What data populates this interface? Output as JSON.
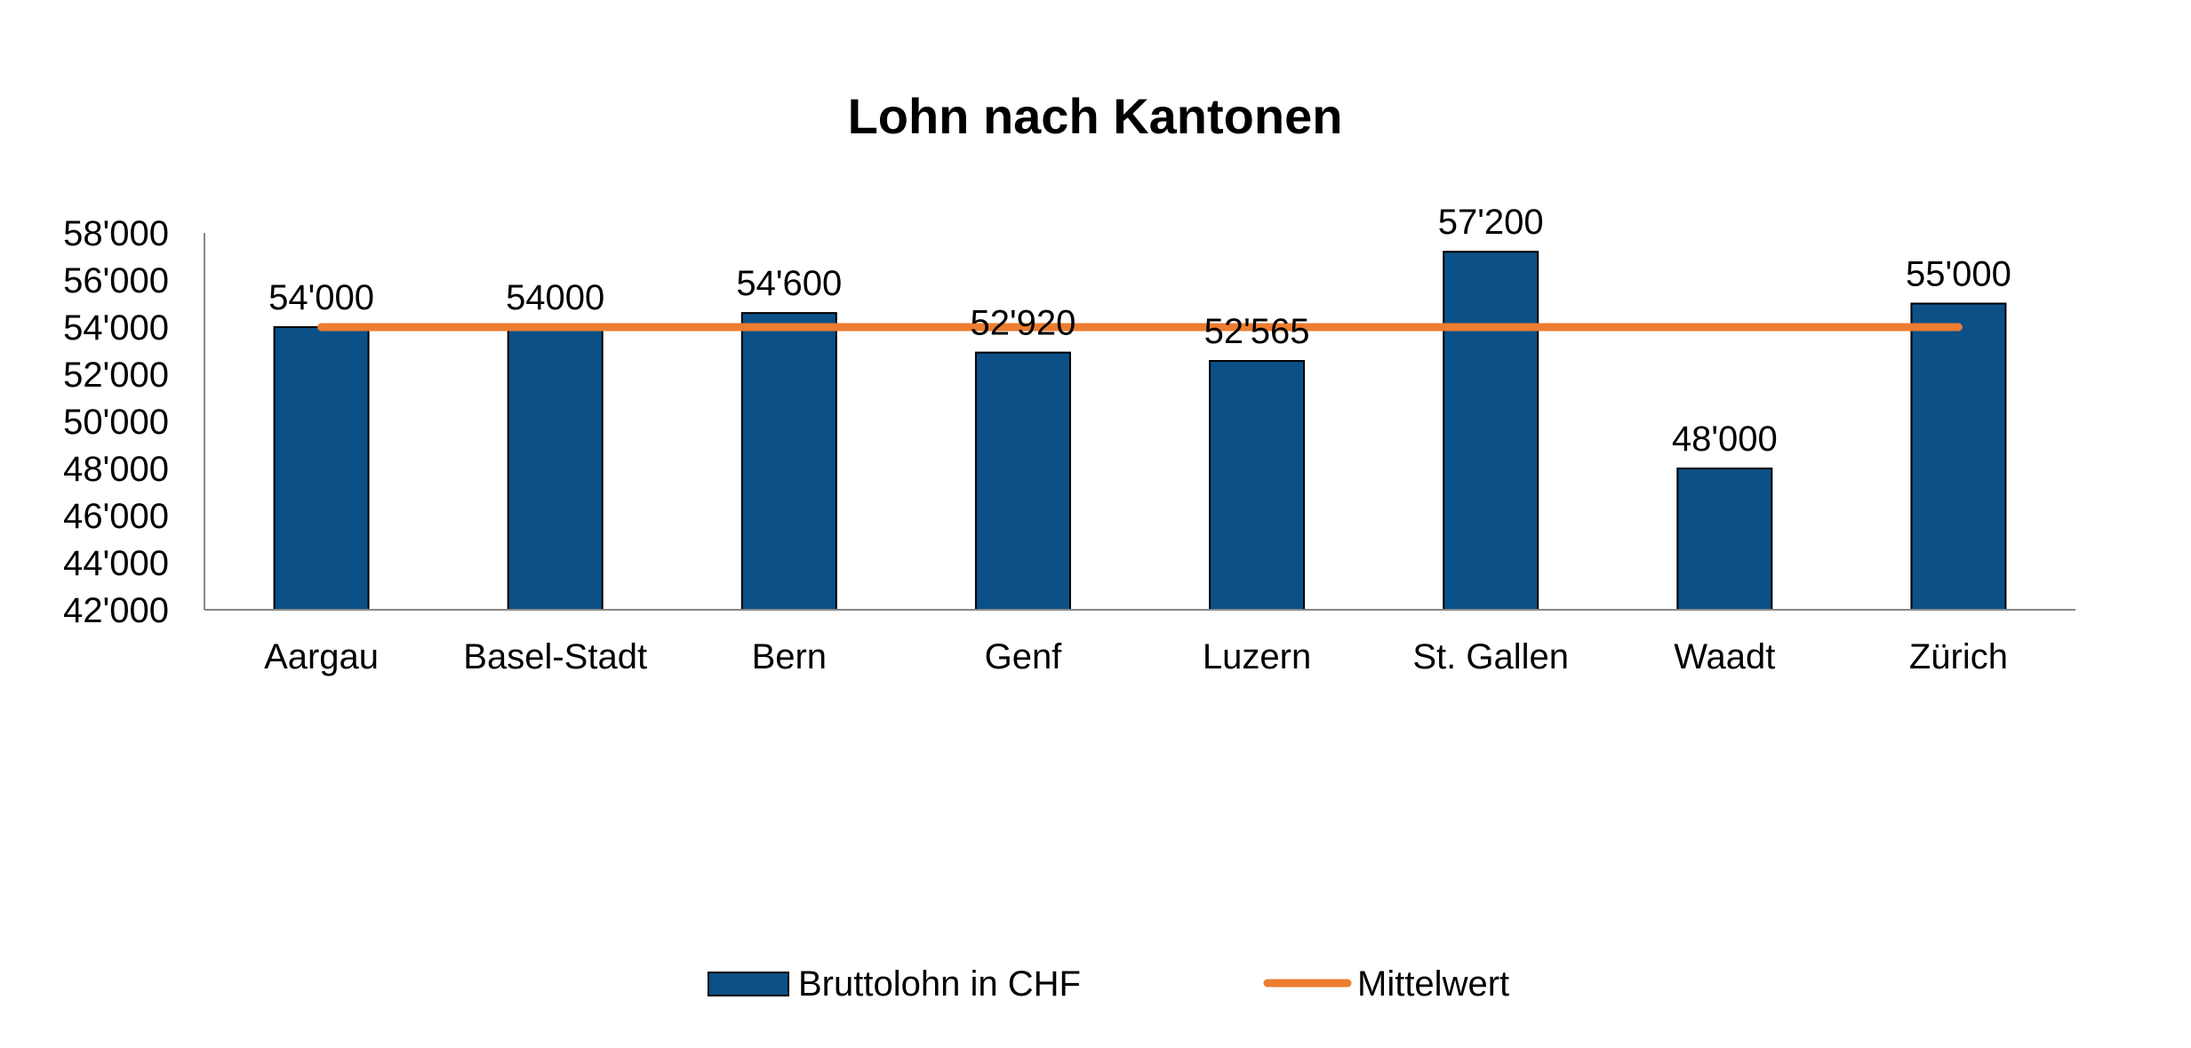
{
  "chart_data": {
    "type": "bar",
    "title": "Lohn nach Kantonen",
    "categories": [
      "Aargau",
      "Basel-Stadt",
      "Bern",
      "Genf",
      "Luzern",
      "St. Gallen",
      "Waadt",
      "Zürich"
    ],
    "series": [
      {
        "name": "Bruttolohn in CHF",
        "type": "bar",
        "color": "#0b5087",
        "values": [
          54000,
          54000,
          54600,
          52920,
          52565,
          57200,
          48000,
          55000
        ],
        "labels": [
          "54'000",
          "54000",
          "54'600",
          "52'920",
          "52'565",
          "57'200",
          "48'000",
          "55'000"
        ]
      },
      {
        "name": "Mittelwert",
        "type": "line",
        "color": "#ed7d31",
        "values": [
          54000,
          54000,
          54000,
          54000,
          54000,
          54000,
          54000,
          54000
        ]
      }
    ],
    "ylim": [
      42000,
      58000
    ],
    "yticks": [
      42000,
      44000,
      46000,
      48000,
      50000,
      52000,
      54000,
      56000,
      58000
    ],
    "ytick_labels": [
      "42'000",
      "44'000",
      "46'000",
      "48'000",
      "50'000",
      "52'000",
      "54'000",
      "56'000",
      "58'000"
    ],
    "xlabel": "",
    "ylabel": "",
    "grid": false,
    "legend_position": "bottom"
  }
}
